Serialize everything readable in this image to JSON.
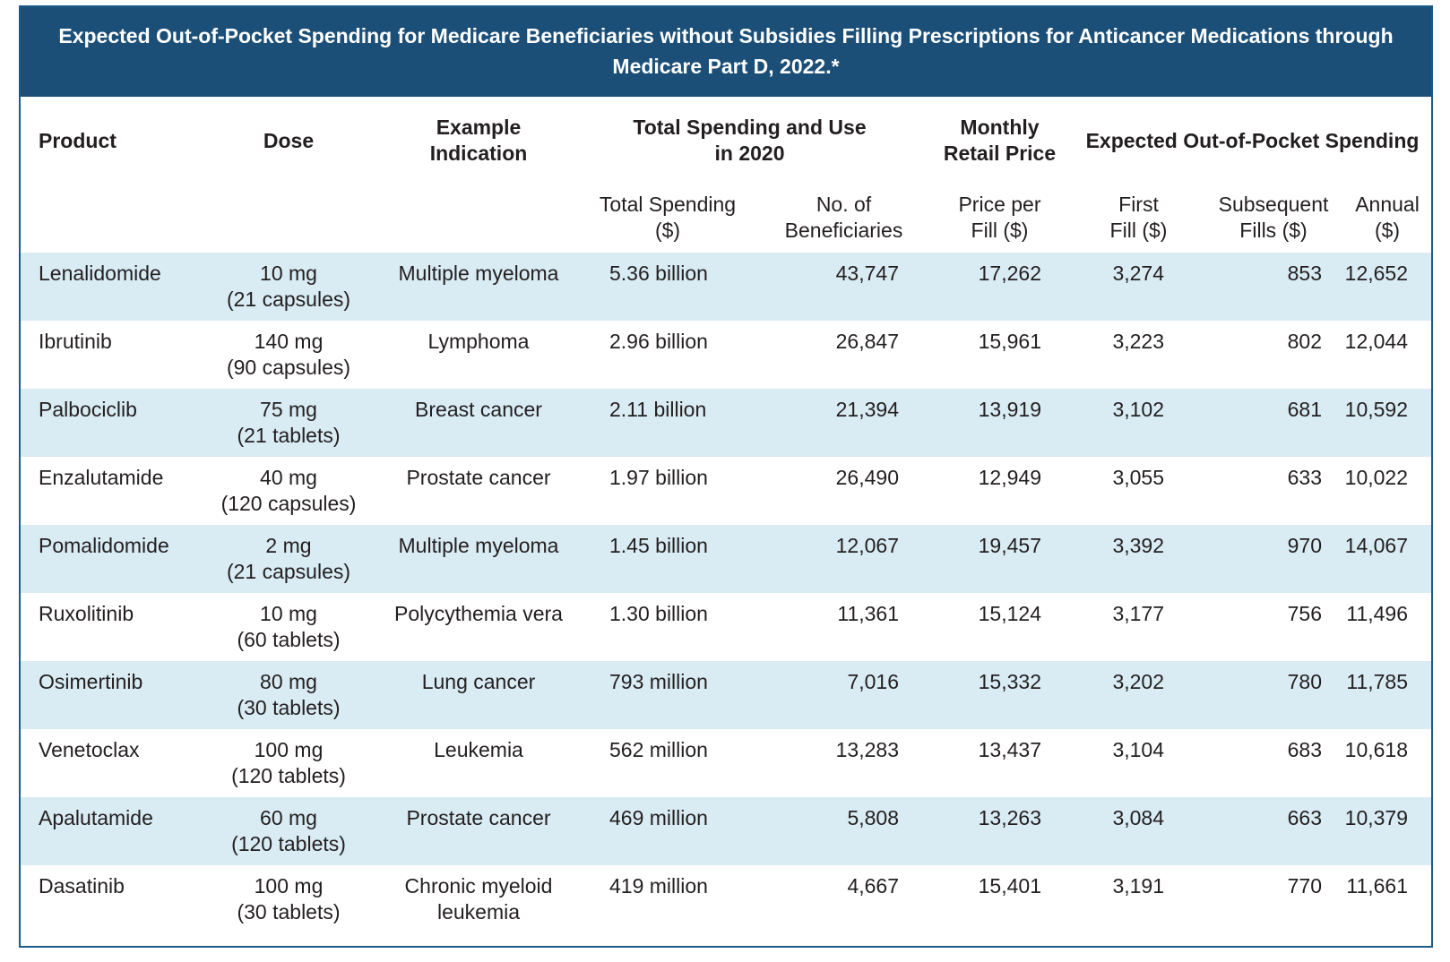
{
  "title": "Expected Out-of-Pocket Spending for Medicare Beneficiaries without Subsidies Filling Prescriptions for Anticancer Medications through Medicare Part D, 2022.*",
  "headers": {
    "product": "Product",
    "dose": "Dose",
    "indication": "Example Indication",
    "total_group": "Total Spending and Use in 2020",
    "monthly_group": "Monthly Retail Price",
    "oop_group": "Expected Out-of-Pocket Spending",
    "total_spending": "Total Spending ($)",
    "beneficiaries": "No. of Beneficiaries",
    "price_per_fill": "Price per Fill ($)",
    "first_fill": "First Fill ($)",
    "subsequent_fills": "Subsequent Fills ($)",
    "annual": "Annual ($)"
  },
  "rows": [
    {
      "product": "Lenalidomide",
      "dose": "10 mg",
      "qty": "(21 capsules)",
      "indication": "Multiple myeloma",
      "indication2": "",
      "spending": "5.36 billion",
      "beneficiaries": "43,747",
      "price": "17,262",
      "first": "3,274",
      "subsequent": "853",
      "annual": "12,652"
    },
    {
      "product": "Ibrutinib",
      "dose": "140 mg",
      "qty": "(90 capsules)",
      "indication": "Lymphoma",
      "indication2": "",
      "spending": "2.96 billion",
      "beneficiaries": "26,847",
      "price": "15,961",
      "first": "3,223",
      "subsequent": "802",
      "annual": "12,044"
    },
    {
      "product": "Palbociclib",
      "dose": "75 mg",
      "qty": "(21 tablets)",
      "indication": "Breast cancer",
      "indication2": "",
      "spending": "2.11 billion",
      "beneficiaries": "21,394",
      "price": "13,919",
      "first": "3,102",
      "subsequent": "681",
      "annual": "10,592"
    },
    {
      "product": "Enzalutamide",
      "dose": "40 mg",
      "qty": "(120 capsules)",
      "indication": "Prostate cancer",
      "indication2": "",
      "spending": "1.97 billion",
      "beneficiaries": "26,490",
      "price": "12,949",
      "first": "3,055",
      "subsequent": "633",
      "annual": "10,022"
    },
    {
      "product": "Pomalidomide",
      "dose": "2 mg",
      "qty": "(21 capsules)",
      "indication": "Multiple myeloma",
      "indication2": "",
      "spending": "1.45 billion",
      "beneficiaries": "12,067",
      "price": "19,457",
      "first": "3,392",
      "subsequent": "970",
      "annual": "14,067"
    },
    {
      "product": "Ruxolitinib",
      "dose": "10 mg",
      "qty": "(60 tablets)",
      "indication": "Polycythemia vera",
      "indication2": "",
      "spending": "1.30 billion",
      "beneficiaries": "11,361",
      "price": "15,124",
      "first": "3,177",
      "subsequent": "756",
      "annual": "11,496"
    },
    {
      "product": "Osimertinib",
      "dose": "80 mg",
      "qty": "(30 tablets)",
      "indication": "Lung cancer",
      "indication2": "",
      "spending": "793 million",
      "beneficiaries": "7,016",
      "price": "15,332",
      "first": "3,202",
      "subsequent": "780",
      "annual": "11,785"
    },
    {
      "product": "Venetoclax",
      "dose": "100 mg",
      "qty": "(120 tablets)",
      "indication": "Leukemia",
      "indication2": "",
      "spending": "562 million",
      "beneficiaries": "13,283",
      "price": "13,437",
      "first": "3,104",
      "subsequent": "683",
      "annual": "10,618"
    },
    {
      "product": "Apalutamide",
      "dose": "60 mg",
      "qty": "(120 tablets)",
      "indication": "Prostate cancer",
      "indication2": "",
      "spending": "469 million",
      "beneficiaries": "5,808",
      "price": "13,263",
      "first": "3,084",
      "subsequent": "663",
      "annual": "10,379"
    },
    {
      "product": "Dasatinib",
      "dose": "100 mg",
      "qty": "(30 tablets)",
      "indication": "Chronic myeloid",
      "indication2": "leukemia",
      "spending": "419 million",
      "beneficiaries": "4,667",
      "price": "15,401",
      "first": "3,191",
      "subsequent": "770",
      "annual": "11,661"
    }
  ]
}
